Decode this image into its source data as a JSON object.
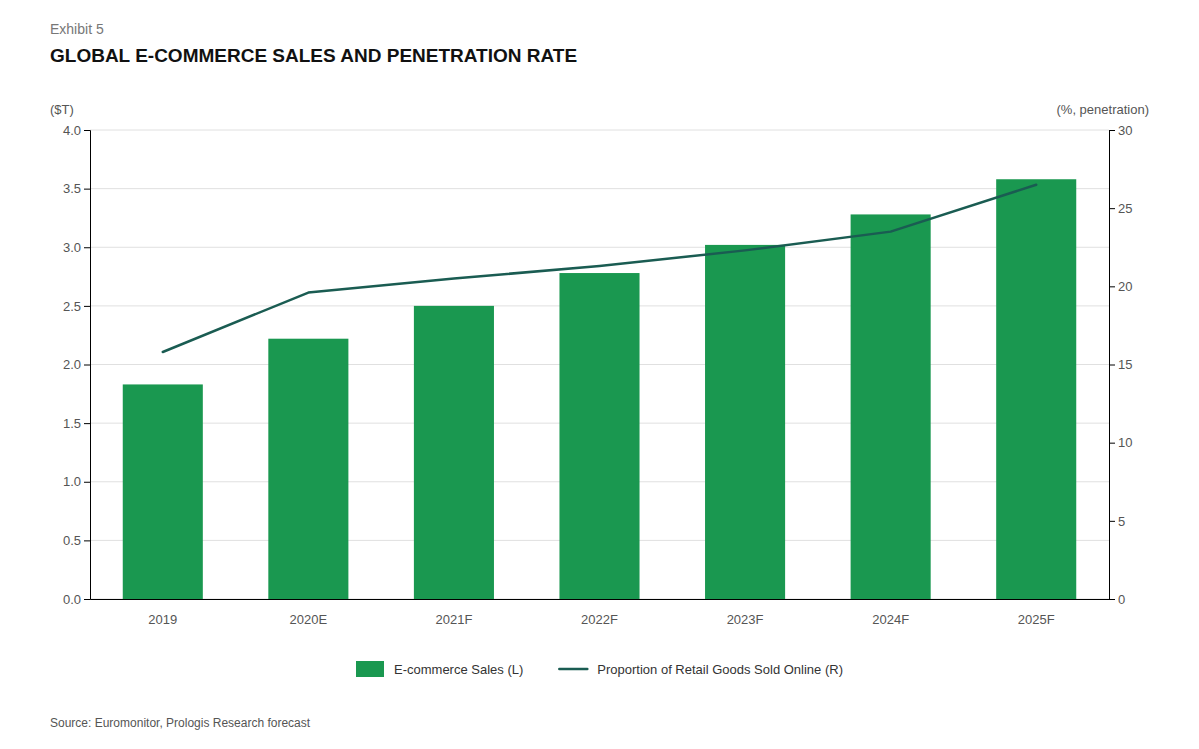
{
  "chart_data": {
    "type": "bar",
    "subtitle": "Exhibit 5",
    "title": "GLOBAL E-COMMERCE SALES AND PENETRATION RATE",
    "y_label": "($T)",
    "y2_label": "(%, penetration)",
    "source": "Source: Euromonitor, Prologis Research forecast",
    "categories": [
      "2019",
      "2020E",
      "2021F",
      "2022F",
      "2023F",
      "2024F",
      "2025F"
    ],
    "series": [
      {
        "name": "E-commerce Sales (L)",
        "type": "bar",
        "color": "#1a9850",
        "values": [
          1.83,
          2.22,
          2.5,
          2.78,
          3.02,
          3.28,
          3.58
        ]
      },
      {
        "name": "Proportion of Retail Goods Sold Online (R)",
        "type": "line",
        "axis": "y2",
        "color": "#1a5c52",
        "values": [
          15.8,
          19.6,
          20.5,
          21.3,
          22.3,
          23.5,
          26.5
        ]
      }
    ],
    "ylim": [
      0,
      4.0
    ],
    "yticks": [
      {
        "value": 0.0,
        "label": "0.0"
      },
      0.5,
      {
        "value": 1.0,
        "label": "1.0"
      },
      1.5,
      {
        "value": 2.0,
        "label": "2.0"
      },
      2.5,
      {
        "value": 3.0,
        "label": "3.0"
      },
      3.5,
      {
        "value": 4.0,
        "label": "4.0"
      }
    ],
    "y2lim": [
      0,
      30
    ],
    "y2ticks": [
      0,
      5,
      10,
      15,
      20,
      25,
      30
    ],
    "grid": true,
    "legend": "bottom"
  }
}
